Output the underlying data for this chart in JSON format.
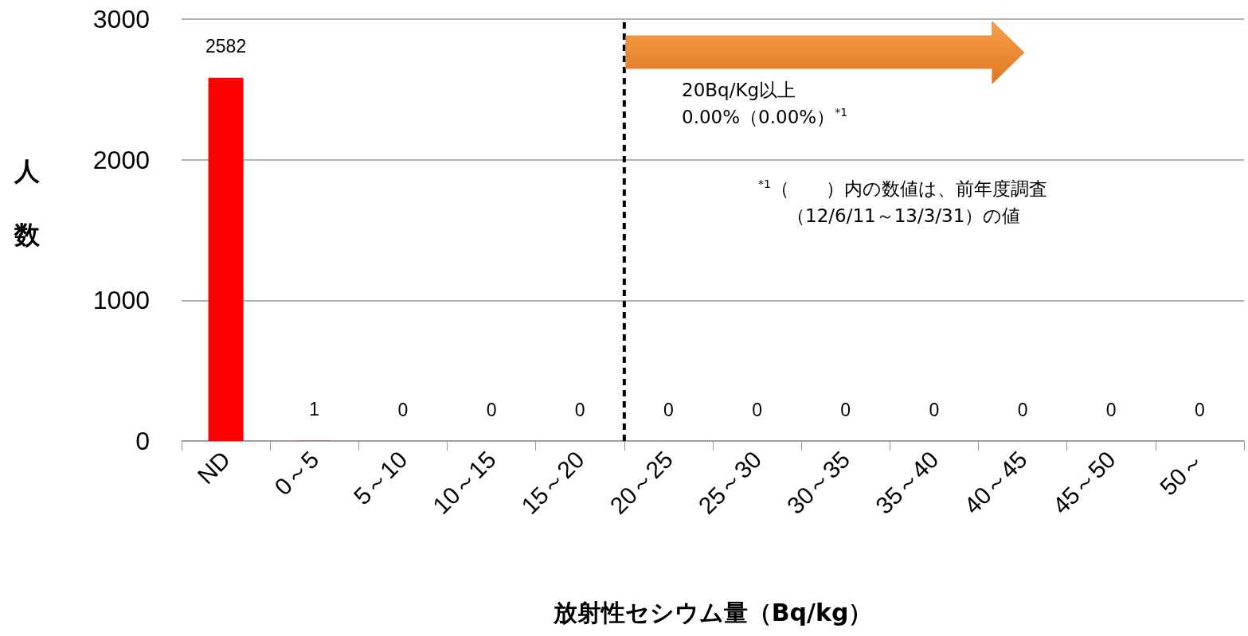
{
  "chart_data": {
    "type": "bar",
    "ylabel": "人数",
    "xlabel": "放射性セシウム量（Bq/kg）",
    "categories": [
      "ND",
      "0～5",
      "5～10",
      "10～15",
      "15～20",
      "20～25",
      "25～30",
      "30～35",
      "35～40",
      "40～45",
      "45～50",
      "50～"
    ],
    "values": [
      2582,
      1,
      0,
      0,
      0,
      0,
      0,
      0,
      0,
      0,
      0,
      0
    ],
    "color": "#ff0000",
    "ylim": [
      0,
      3000
    ],
    "yticks": [
      0,
      1000,
      2000,
      3000
    ],
    "grid": "y",
    "data_labels": true,
    "ref_lines": [
      {
        "axis": "x",
        "value": "20～25",
        "label": null,
        "line_style": "dashed",
        "color": "#000000"
      }
    ],
    "annotations": [
      "20Bq/Kg以上",
      "0.00%（0.00%）$^{*1}$",
      "$^{*1}$（　　）内の数値は、前年度調査",
      "（12/6/11～13/3/31）の値"
    ]
  }
}
